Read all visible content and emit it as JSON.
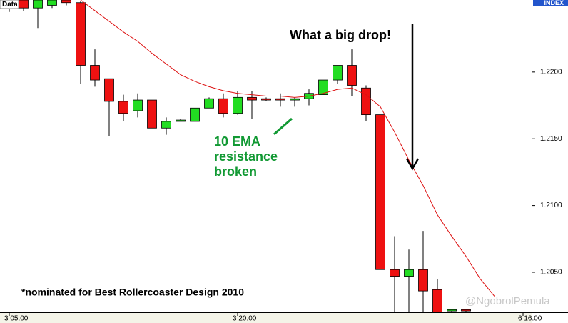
{
  "chart_data": {
    "type": "candlestick",
    "corner_label": "Data",
    "axis_label": "INDEX",
    "categories": [
      "3 05:00",
      null,
      null,
      null,
      null,
      null,
      null,
      null,
      null,
      null,
      null,
      null,
      null,
      null,
      null,
      null,
      "3 20:00",
      null,
      null,
      null,
      null,
      null,
      null,
      null,
      null,
      null,
      null,
      null,
      null,
      null,
      null,
      null,
      null,
      null,
      null,
      null,
      "6 16:00"
    ],
    "open": [
      1.2248,
      1.2254,
      1.2248,
      1.225,
      1.2254,
      1.2252,
      1.2205,
      1.2195,
      1.2178,
      1.2171,
      1.2179,
      1.2158,
      1.2163,
      1.2163,
      1.2173,
      1.218,
      1.2169,
      1.2181,
      1.218,
      1.218,
      1.2179,
      1.218,
      1.2183,
      1.2194,
      1.2205,
      1.2188,
      1.2168,
      1.2052,
      1.2047,
      1.2052,
      1.2037,
      1.2021,
      1.2022,
      null,
      null,
      null,
      null
    ],
    "high": [
      1.2254,
      1.2254,
      1.2254,
      1.2254,
      1.2254,
      1.2253,
      1.2217,
      1.2195,
      1.2183,
      1.2184,
      1.2179,
      1.2166,
      1.2165,
      1.2173,
      1.2181,
      1.2184,
      1.2186,
      1.2186,
      1.2181,
      1.2184,
      1.2181,
      1.2187,
      1.2194,
      1.2205,
      1.2217,
      1.219,
      1.2168,
      1.2077,
      1.2067,
      1.2081,
      1.2045,
      1.2022,
      1.2022,
      null,
      null,
      null,
      null
    ],
    "low": [
      1.2245,
      1.2246,
      1.2233,
      1.2248,
      1.225,
      1.2191,
      1.2189,
      1.2152,
      1.2163,
      1.2166,
      1.2158,
      1.2153,
      1.2163,
      1.2163,
      1.2173,
      1.2166,
      1.2168,
      1.2165,
      1.2178,
      1.2174,
      1.2174,
      1.2175,
      1.2183,
      1.2191,
      1.2182,
      1.2163,
      1.2052,
      1.202,
      1.202,
      1.202,
      1.202,
      1.202,
      1.202,
      null,
      null,
      null,
      null
    ],
    "close": [
      1.2254,
      1.2248,
      1.2254,
      1.2254,
      1.2252,
      1.2205,
      1.2194,
      1.2178,
      1.2169,
      1.2179,
      1.2158,
      1.2163,
      1.2164,
      1.2173,
      1.218,
      1.2169,
      1.2181,
      1.2179,
      1.2179,
      1.2179,
      1.218,
      1.2184,
      1.2194,
      1.2205,
      1.219,
      1.2168,
      1.2052,
      1.2047,
      1.2052,
      1.2036,
      1.202,
      1.2022,
      1.2021,
      null,
      null,
      null,
      null
    ],
    "up_color": "#22dd22",
    "down_color": "#ee1111",
    "ema": {
      "color": "#dd1111",
      "values": [
        null,
        null,
        null,
        null,
        null,
        1.2254,
        1.2246,
        1.2238,
        1.223,
        1.2223,
        1.2214,
        1.2206,
        1.2198,
        1.2193,
        1.2189,
        1.2186,
        1.2184,
        1.2183,
        1.2182,
        1.2182,
        1.2181,
        1.2182,
        1.2184,
        1.2187,
        1.2188,
        1.2183,
        1.2174,
        1.2155,
        1.2134,
        1.2115,
        1.2093,
        1.2077,
        1.2062,
        1.2045,
        1.2032,
        null,
        null
      ]
    },
    "ylim": [
      1.202,
      1.2254
    ],
    "yticks": [
      {
        "value": 1.205,
        "label": "1.2050"
      },
      {
        "value": 1.21,
        "label": "1.2100"
      },
      {
        "value": 1.215,
        "label": "1.2150"
      },
      {
        "value": 1.22,
        "label": "1.2200"
      }
    ],
    "annotations": {
      "headline": "What a big drop!",
      "ema_note": [
        "10 EMA",
        "resistance",
        "broken"
      ],
      "footnote": "*nominated for Best Rollercoaster Design 2010",
      "watermark": "@NgobrolPemula"
    }
  }
}
